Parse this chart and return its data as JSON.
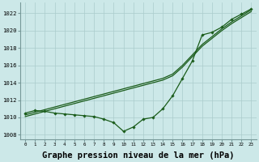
{
  "hours": [
    0,
    1,
    2,
    3,
    4,
    5,
    6,
    7,
    8,
    9,
    10,
    11,
    12,
    13,
    14,
    15,
    16,
    17,
    18,
    19,
    20,
    21,
    22,
    23
  ],
  "line_straight1": [
    1010.3,
    1010.6,
    1010.9,
    1011.2,
    1011.5,
    1011.8,
    1012.1,
    1012.4,
    1012.7,
    1013.0,
    1013.3,
    1013.6,
    1013.9,
    1014.2,
    1014.5,
    1015.0,
    1016.0,
    1017.2,
    1018.4,
    1019.3,
    1020.2,
    1021.0,
    1021.7,
    1022.4
  ],
  "line_straight2": [
    1010.1,
    1010.4,
    1010.7,
    1011.0,
    1011.3,
    1011.6,
    1011.9,
    1012.2,
    1012.5,
    1012.8,
    1013.1,
    1013.4,
    1013.7,
    1014.0,
    1014.3,
    1014.8,
    1015.8,
    1017.0,
    1018.2,
    1019.1,
    1020.0,
    1020.8,
    1021.5,
    1022.2
  ],
  "line_marker": [
    1010.5,
    1010.8,
    1010.7,
    1010.5,
    1010.4,
    1010.3,
    1010.2,
    1010.1,
    1009.8,
    1009.4,
    1008.4,
    1008.9,
    1009.8,
    1010.0,
    1011.0,
    1012.5,
    1014.5,
    1016.5,
    1019.5,
    1019.8,
    1020.4,
    1021.3,
    1021.9,
    1022.5
  ],
  "ylim": [
    1007.5,
    1023.2
  ],
  "yticks": [
    1008,
    1010,
    1012,
    1014,
    1016,
    1018,
    1020,
    1022
  ],
  "bg_color": "#cce8e8",
  "grid_color": "#aacccc",
  "line_color": "#1a5c1a",
  "xlabel": "Graphe pression niveau de la mer (hPa)",
  "xlabel_fontsize": 7.5
}
